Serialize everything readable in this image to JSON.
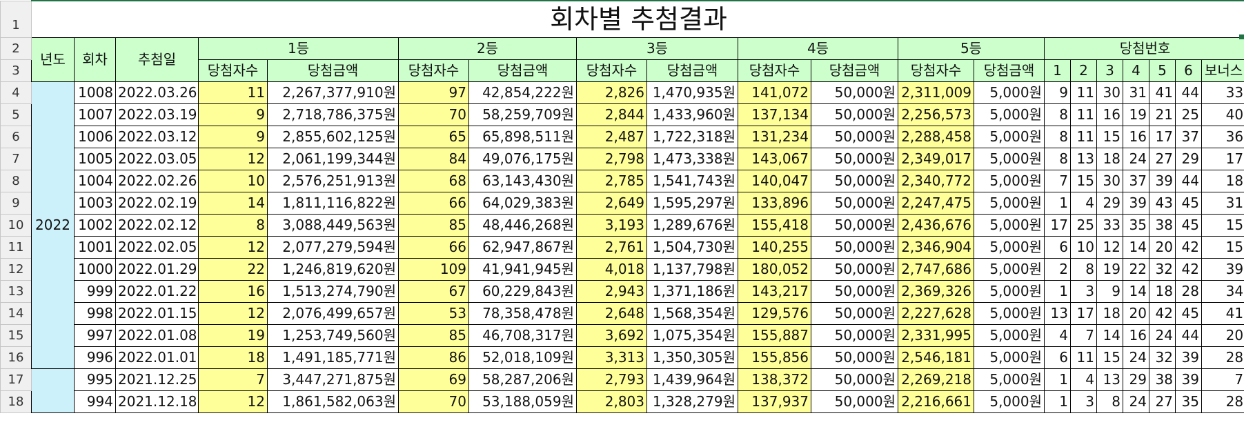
{
  "sheet": {
    "title": "회차별 추첨결과",
    "row_numbers": [
      "1",
      "2",
      "3",
      "4",
      "5",
      "6",
      "7",
      "8",
      "9",
      "10",
      "11",
      "12",
      "13",
      "14",
      "15",
      "16",
      "17",
      "18"
    ],
    "headers": {
      "year": "년도",
      "round": "회차",
      "draw_date": "추첨일",
      "prize1": "1등",
      "prize2": "2등",
      "prize3": "3등",
      "prize4": "4등",
      "prize5": "5등",
      "winning_numbers": "당첨번호",
      "winners_count": "당첨자수",
      "prize_amount": "당첨금액",
      "n1": "1",
      "n2": "2",
      "n3": "3",
      "n4": "4",
      "n5": "5",
      "n6": "6",
      "bonus": "보너스"
    },
    "year_groups": [
      {
        "year": "2022"
      },
      {
        "year": ""
      }
    ],
    "rows": [
      {
        "round": "1008",
        "date": "2022.03.26",
        "w1": "11",
        "a1": "2,267,377,910원",
        "w2": "97",
        "a2": "42,854,222원",
        "w3": "2,826",
        "a3": "1,470,935원",
        "w4": "141,072",
        "a4": "50,000원",
        "w5": "2,311,009",
        "a5": "5,000원",
        "n1": "9",
        "n2": "11",
        "n3": "30",
        "n4": "31",
        "n5": "41",
        "n6": "44",
        "bonus": "33"
      },
      {
        "round": "1007",
        "date": "2022.03.19",
        "w1": "9",
        "a1": "2,718,786,375원",
        "w2": "70",
        "a2": "58,259,709원",
        "w3": "2,844",
        "a3": "1,433,960원",
        "w4": "137,134",
        "a4": "50,000원",
        "w5": "2,256,573",
        "a5": "5,000원",
        "n1": "8",
        "n2": "11",
        "n3": "16",
        "n4": "19",
        "n5": "21",
        "n6": "25",
        "bonus": "40"
      },
      {
        "round": "1006",
        "date": "2022.03.12",
        "w1": "9",
        "a1": "2,855,602,125원",
        "w2": "65",
        "a2": "65,898,511원",
        "w3": "2,487",
        "a3": "1,722,318원",
        "w4": "131,234",
        "a4": "50,000원",
        "w5": "2,288,458",
        "a5": "5,000원",
        "n1": "8",
        "n2": "11",
        "n3": "15",
        "n4": "16",
        "n5": "17",
        "n6": "37",
        "bonus": "36"
      },
      {
        "round": "1005",
        "date": "2022.03.05",
        "w1": "12",
        "a1": "2,061,199,344원",
        "w2": "84",
        "a2": "49,076,175원",
        "w3": "2,798",
        "a3": "1,473,338원",
        "w4": "143,067",
        "a4": "50,000원",
        "w5": "2,349,017",
        "a5": "5,000원",
        "n1": "8",
        "n2": "13",
        "n3": "18",
        "n4": "24",
        "n5": "27",
        "n6": "29",
        "bonus": "17"
      },
      {
        "round": "1004",
        "date": "2022.02.26",
        "w1": "10",
        "a1": "2,576,251,913원",
        "w2": "68",
        "a2": "63,143,430원",
        "w3": "2,785",
        "a3": "1,541,743원",
        "w4": "140,047",
        "a4": "50,000원",
        "w5": "2,340,772",
        "a5": "5,000원",
        "n1": "7",
        "n2": "15",
        "n3": "30",
        "n4": "37",
        "n5": "39",
        "n6": "44",
        "bonus": "18"
      },
      {
        "round": "1003",
        "date": "2022.02.19",
        "w1": "14",
        "a1": "1,811,116,822원",
        "w2": "66",
        "a2": "64,029,383원",
        "w3": "2,649",
        "a3": "1,595,297원",
        "w4": "133,896",
        "a4": "50,000원",
        "w5": "2,247,475",
        "a5": "5,000원",
        "n1": "1",
        "n2": "4",
        "n3": "29",
        "n4": "39",
        "n5": "43",
        "n6": "45",
        "bonus": "31"
      },
      {
        "round": "1002",
        "date": "2022.02.12",
        "w1": "8",
        "a1": "3,088,449,563원",
        "w2": "85",
        "a2": "48,446,268원",
        "w3": "3,193",
        "a3": "1,289,676원",
        "w4": "155,418",
        "a4": "50,000원",
        "w5": "2,436,676",
        "a5": "5,000원",
        "n1": "17",
        "n2": "25",
        "n3": "33",
        "n4": "35",
        "n5": "38",
        "n6": "45",
        "bonus": "15"
      },
      {
        "round": "1001",
        "date": "2022.02.05",
        "w1": "12",
        "a1": "2,077,279,594원",
        "w2": "66",
        "a2": "62,947,867원",
        "w3": "2,761",
        "a3": "1,504,730원",
        "w4": "140,255",
        "a4": "50,000원",
        "w5": "2,346,904",
        "a5": "5,000원",
        "n1": "6",
        "n2": "10",
        "n3": "12",
        "n4": "14",
        "n5": "20",
        "n6": "42",
        "bonus": "15"
      },
      {
        "round": "1000",
        "date": "2022.01.29",
        "w1": "22",
        "a1": "1,246,819,620원",
        "w2": "109",
        "a2": "41,941,945원",
        "w3": "4,018",
        "a3": "1,137,798원",
        "w4": "180,052",
        "a4": "50,000원",
        "w5": "2,747,686",
        "a5": "5,000원",
        "n1": "2",
        "n2": "8",
        "n3": "19",
        "n4": "22",
        "n5": "32",
        "n6": "42",
        "bonus": "39"
      },
      {
        "round": "999",
        "date": "2022.01.22",
        "w1": "16",
        "a1": "1,513,274,790원",
        "w2": "67",
        "a2": "60,229,843원",
        "w3": "2,943",
        "a3": "1,371,186원",
        "w4": "143,217",
        "a4": "50,000원",
        "w5": "2,369,326",
        "a5": "5,000원",
        "n1": "1",
        "n2": "3",
        "n3": "9",
        "n4": "14",
        "n5": "18",
        "n6": "28",
        "bonus": "34"
      },
      {
        "round": "998",
        "date": "2022.01.15",
        "w1": "12",
        "a1": "2,076,499,657원",
        "w2": "53",
        "a2": "78,358,478원",
        "w3": "2,648",
        "a3": "1,568,354원",
        "w4": "129,576",
        "a4": "50,000원",
        "w5": "2,227,628",
        "a5": "5,000원",
        "n1": "13",
        "n2": "17",
        "n3": "18",
        "n4": "20",
        "n5": "42",
        "n6": "45",
        "bonus": "41"
      },
      {
        "round": "997",
        "date": "2022.01.08",
        "w1": "19",
        "a1": "1,253,749,560원",
        "w2": "85",
        "a2": "46,708,317원",
        "w3": "3,692",
        "a3": "1,075,354원",
        "w4": "155,887",
        "a4": "50,000원",
        "w5": "2,331,995",
        "a5": "5,000원",
        "n1": "4",
        "n2": "7",
        "n3": "14",
        "n4": "16",
        "n5": "24",
        "n6": "44",
        "bonus": "20"
      },
      {
        "round": "996",
        "date": "2022.01.01",
        "w1": "18",
        "a1": "1,491,185,771원",
        "w2": "86",
        "a2": "52,018,109원",
        "w3": "3,313",
        "a3": "1,350,305원",
        "w4": "155,856",
        "a4": "50,000원",
        "w5": "2,546,181",
        "a5": "5,000원",
        "n1": "6",
        "n2": "11",
        "n3": "15",
        "n4": "24",
        "n5": "32",
        "n6": "39",
        "bonus": "28"
      },
      {
        "round": "995",
        "date": "2021.12.25",
        "w1": "7",
        "a1": "3,447,271,875원",
        "w2": "69",
        "a2": "58,287,206원",
        "w3": "2,793",
        "a3": "1,439,964원",
        "w4": "138,372",
        "a4": "50,000원",
        "w5": "2,269,218",
        "a5": "5,000원",
        "n1": "1",
        "n2": "4",
        "n3": "13",
        "n4": "29",
        "n5": "38",
        "n6": "39",
        "bonus": "7"
      },
      {
        "round": "994",
        "date": "2021.12.18",
        "w1": "12",
        "a1": "1,861,582,063원",
        "w2": "70",
        "a2": "53,188,059원",
        "w3": "2,803",
        "a3": "1,328,279원",
        "w4": "137,937",
        "a4": "50,000원",
        "w5": "2,216,661",
        "a5": "5,000원",
        "n1": "1",
        "n2": "3",
        "n3": "8",
        "n4": "24",
        "n5": "27",
        "n6": "35",
        "bonus": "28"
      }
    ],
    "colors": {
      "header_green": "#ccffcc",
      "year_blue": "#cdf1fb",
      "winners_yellow": "#ffff99",
      "rowhead_gray": "#f0f0f0"
    }
  }
}
